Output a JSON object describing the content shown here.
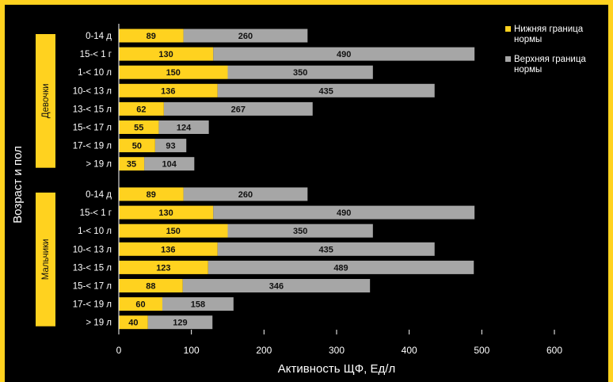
{
  "chart_data": {
    "type": "bar",
    "stacked": "overlay",
    "orientation": "horizontal",
    "xlabel": "Активность ЩФ, Ед/л",
    "ylabel": "Возраст и пол",
    "xlim": [
      0,
      600
    ],
    "xticks": [
      "0",
      "100",
      "200",
      "300",
      "400",
      "500",
      "600"
    ],
    "grid": false,
    "legend": {
      "placement": "top-right",
      "items": [
        {
          "label_line1": "Нижняя граница",
          "label_line2": "нормы",
          "color": "#ffd21f"
        },
        {
          "label_line1": "Верхняя граница",
          "label_line2": "нормы",
          "color": "#a6a6a6"
        }
      ]
    },
    "groups": [
      {
        "name": "Девочки",
        "categories": [
          "0-14 д",
          "15-< 1 г",
          "1-< 10 л",
          "10-< 13 л",
          "13-< 15 л",
          "15-< 17 л",
          "17-< 19 л",
          "> 19 л"
        ],
        "lower": [
          89,
          130,
          150,
          136,
          62,
          55,
          50,
          35
        ],
        "upper": [
          260,
          490,
          350,
          435,
          267,
          124,
          93,
          104
        ]
      },
      {
        "name": "Мальчики",
        "categories": [
          "0-14 д",
          "15-< 1 г",
          "1-< 10 л",
          "10-< 13 л",
          "13-< 15 л",
          "15-< 17 л",
          "17-< 19 л",
          "> 19 л"
        ],
        "lower": [
          89,
          130,
          150,
          136,
          123,
          88,
          60,
          40
        ],
        "upper": [
          260,
          490,
          350,
          435,
          489,
          346,
          158,
          129
        ]
      }
    ]
  }
}
